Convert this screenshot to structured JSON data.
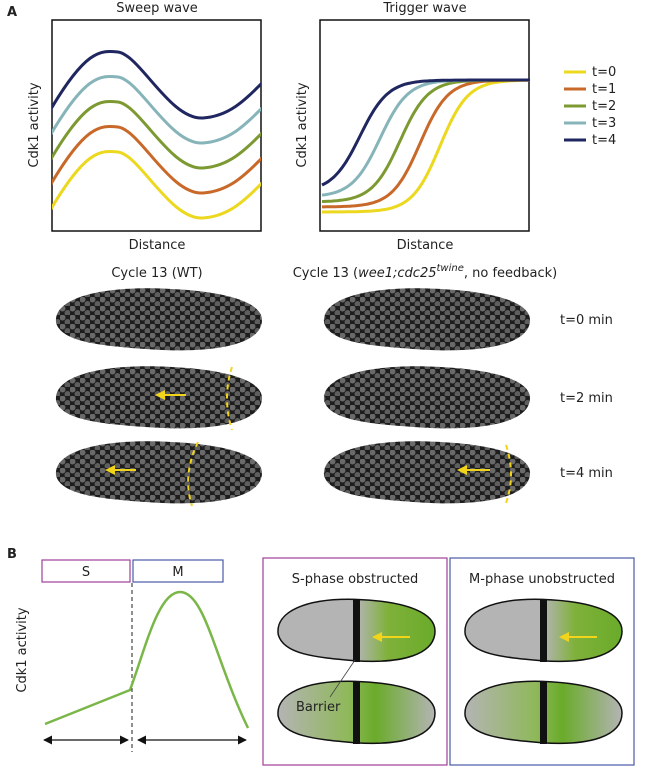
{
  "panel_a": {
    "label": "A",
    "sweep": {
      "title": "Sweep wave",
      "y_label": "Cdk1 activity",
      "x_label": "Distance"
    },
    "trigger": {
      "title": "Trigger wave",
      "y_label": "Cdk1 activity",
      "x_label": "Distance"
    },
    "legend": [
      {
        "label": "t=0",
        "color": "#ecd81e"
      },
      {
        "label": "t=1",
        "color": "#c8692a"
      },
      {
        "label": "t=2",
        "color": "#7d9a32"
      },
      {
        "label": "t=3",
        "color": "#86b4b8"
      },
      {
        "label": "t=4",
        "color": "#1f2660"
      }
    ],
    "cycle_wt": "Cycle 13 (WT)",
    "cycle_mutant": {
      "prefix": "Cycle 13 (",
      "genotype": "wee1;cdc25",
      "superscript": "twine",
      "suffix": ", no feedback)"
    },
    "times": [
      "t=0 min",
      "t=2 min",
      "t=4 min"
    ]
  },
  "panel_b": {
    "label": "B",
    "phase_s": "S",
    "phase_m": "M",
    "y_label": "Cdk1 activity",
    "s_obstructed": "S-phase obstructed",
    "m_unobstructed": "M-phase unobstructed",
    "barrier": "Barrier"
  }
}
